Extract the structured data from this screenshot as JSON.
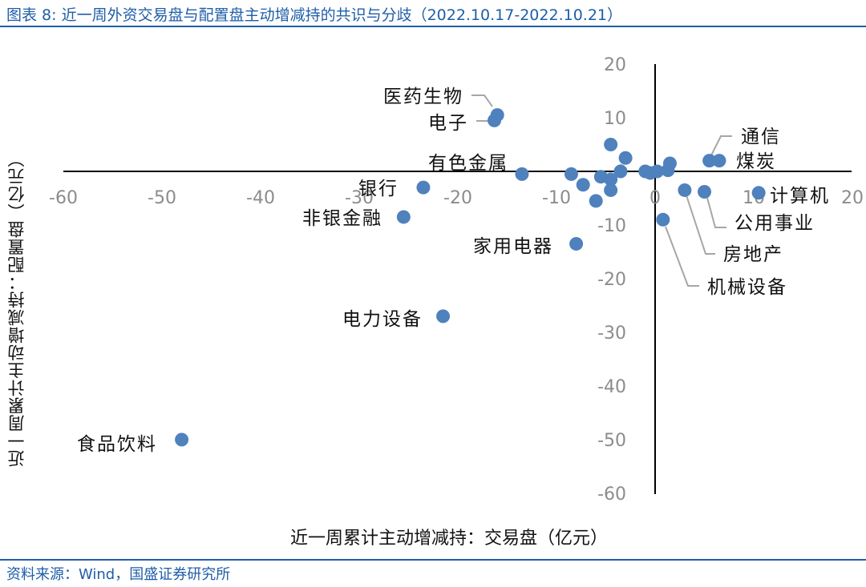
{
  "title": "图表 8:  近一周外资交易盘与配置盘主动增减持的共识与分歧（2022.10.17-2022.10.21）",
  "source": "资料来源：Wind，国盛证券研究所",
  "chart_data": {
    "type": "scatter",
    "xlabel": "近一周累计主动增减持：交易盘（亿元）",
    "ylabel": "近一周累计主动增减持：配置盘（亿元）",
    "xlim": [
      -60,
      20
    ],
    "ylim": [
      -60,
      20
    ],
    "xticks": [
      -60,
      -50,
      -40,
      -30,
      -20,
      -10,
      0,
      10,
      20
    ],
    "yticks": [
      20,
      10,
      0,
      -10,
      -20,
      -30,
      -40,
      -50,
      -60
    ],
    "marker_color": "#4f81bd",
    "points": [
      {
        "name": "食品饮料",
        "x": -48.0,
        "y": -50.0,
        "labeled": true
      },
      {
        "name": "电力设备",
        "x": -21.5,
        "y": -27.0,
        "labeled": true
      },
      {
        "name": "非银金融",
        "x": -25.5,
        "y": -8.5,
        "labeled": true
      },
      {
        "name": "银行",
        "x": -23.5,
        "y": -3.0,
        "labeled": true
      },
      {
        "name": "家用电器",
        "x": -8.0,
        "y": -13.5,
        "labeled": true
      },
      {
        "name": "有色金属",
        "x": -13.5,
        "y": -0.5,
        "labeled": true
      },
      {
        "name": "医药生物",
        "x": -16.0,
        "y": 10.5,
        "labeled": true
      },
      {
        "name": "电子",
        "x": -16.3,
        "y": 9.5,
        "labeled": true
      },
      {
        "name": "通信",
        "x": 5.5,
        "y": 2.0,
        "labeled": true
      },
      {
        "name": "煤炭",
        "x": 6.5,
        "y": 2.0,
        "labeled": true
      },
      {
        "name": "计算机",
        "x": 10.5,
        "y": -4.0,
        "labeled": true
      },
      {
        "name": "公用事业",
        "x": 5.0,
        "y": -3.8,
        "labeled": true
      },
      {
        "name": "房地产",
        "x": 3.0,
        "y": -3.5,
        "labeled": true
      },
      {
        "name": "机械设备",
        "x": 0.8,
        "y": -9.0,
        "labeled": true
      },
      {
        "name": "",
        "x": -4.5,
        "y": 5.0,
        "labeled": false
      },
      {
        "name": "",
        "x": -3.0,
        "y": 2.5,
        "labeled": false
      },
      {
        "name": "",
        "x": -3.5,
        "y": 0.0,
        "labeled": false
      },
      {
        "name": "",
        "x": -8.5,
        "y": -0.5,
        "labeled": false
      },
      {
        "name": "",
        "x": -7.3,
        "y": -2.5,
        "labeled": false
      },
      {
        "name": "",
        "x": -6.0,
        "y": -5.5,
        "labeled": false
      },
      {
        "name": "",
        "x": -5.5,
        "y": -1.0,
        "labeled": false
      },
      {
        "name": "",
        "x": -4.5,
        "y": -1.5,
        "labeled": false
      },
      {
        "name": "",
        "x": -4.5,
        "y": -3.5,
        "labeled": false
      },
      {
        "name": "",
        "x": -1.0,
        "y": 0.0,
        "labeled": false
      },
      {
        "name": "",
        "x": -0.5,
        "y": -0.3,
        "labeled": false
      },
      {
        "name": "",
        "x": 0.2,
        "y": 0.0,
        "labeled": false
      },
      {
        "name": "",
        "x": 1.5,
        "y": 1.5,
        "labeled": false
      },
      {
        "name": "",
        "x": 1.3,
        "y": 0.2,
        "labeled": false
      }
    ]
  }
}
